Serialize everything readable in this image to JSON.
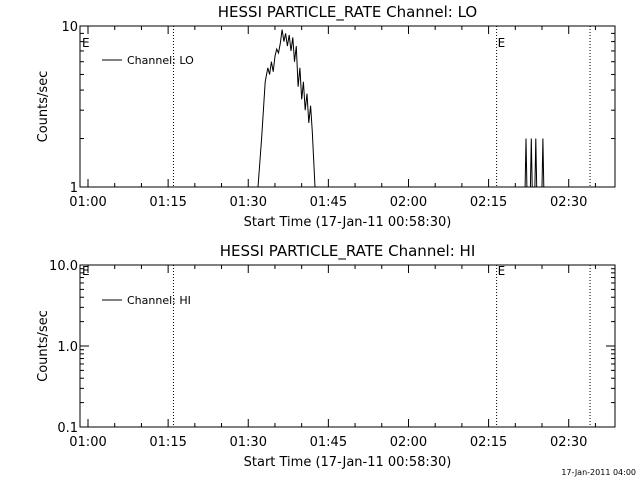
{
  "footer_timestamp": "17-Jan-2011 04:00",
  "chart_data": [
    {
      "type": "line",
      "title": "HESSI PARTICLE_RATE Channel: LO",
      "xlabel": "Start Time (17-Jan-11 00:58:30)",
      "ylabel": "Counts/sec",
      "y_scale": "log",
      "xlim": [
        "00:58:30",
        "02:38:40"
      ],
      "ylim": [
        1,
        10
      ],
      "x_ticks": [
        "01:00",
        "01:15",
        "01:30",
        "01:45",
        "02:00",
        "02:15",
        "02:30"
      ],
      "y_ticks": [
        "1",
        "10"
      ],
      "legend": "top-left",
      "grid": false,
      "event_markers": [
        {
          "time": "00:58:30",
          "label": "E"
        },
        {
          "time": "02:16:30",
          "label": "E"
        }
      ],
      "dotted_lines": [
        "01:16:00",
        "02:16:30",
        "02:34:00"
      ],
      "series": [
        {
          "name": "Channel: LO",
          "points": [
            [
              "01:31:50",
              1.0
            ],
            [
              "01:32:30",
              2.0
            ],
            [
              "01:33:10",
              4.5
            ],
            [
              "01:33:40",
              5.5
            ],
            [
              "01:34:00",
              5.0
            ],
            [
              "01:34:20",
              6.0
            ],
            [
              "01:34:40",
              5.2
            ],
            [
              "01:35:00",
              6.5
            ],
            [
              "01:35:20",
              7.2
            ],
            [
              "01:35:40",
              6.8
            ],
            [
              "01:36:00",
              7.8
            ],
            [
              "01:36:20",
              9.5
            ],
            [
              "01:36:40",
              8.0
            ],
            [
              "01:37:00",
              9.0
            ],
            [
              "01:37:20",
              7.5
            ],
            [
              "01:37:40",
              8.8
            ],
            [
              "01:38:00",
              7.0
            ],
            [
              "01:38:20",
              8.5
            ],
            [
              "01:38:40",
              6.0
            ],
            [
              "01:39:00",
              7.5
            ],
            [
              "01:39:20",
              4.2
            ],
            [
              "01:39:40",
              5.5
            ],
            [
              "01:40:00",
              3.5
            ],
            [
              "01:40:20",
              4.5
            ],
            [
              "01:40:40",
              3.0
            ],
            [
              "01:41:00",
              3.8
            ],
            [
              "01:41:20",
              2.5
            ],
            [
              "01:41:40",
              3.2
            ],
            [
              "01:42:00",
              2.2
            ],
            [
              "01:42:30",
              1.0
            ],
            [
              "02:21:50",
              1.0
            ],
            [
              "02:22:00",
              2.0
            ],
            [
              "02:22:10",
              1.0
            ],
            [
              "02:22:50",
              1.0
            ],
            [
              "02:23:00",
              2.0
            ],
            [
              "02:23:10",
              1.0
            ],
            [
              "02:23:40",
              1.0
            ],
            [
              "02:23:50",
              2.0
            ],
            [
              "02:24:00",
              1.0
            ],
            [
              "02:25:00",
              1.0
            ],
            [
              "02:25:10",
              2.0
            ],
            [
              "02:25:20",
              1.0
            ]
          ]
        }
      ]
    },
    {
      "type": "line",
      "title": "HESSI PARTICLE_RATE Channel: HI",
      "xlabel": "Start Time (17-Jan-11 00:58:30)",
      "ylabel": "Counts/sec",
      "y_scale": "log",
      "xlim": [
        "00:58:30",
        "02:38:40"
      ],
      "ylim": [
        0.1,
        10.0
      ],
      "x_ticks": [
        "01:00",
        "01:15",
        "01:30",
        "01:45",
        "02:00",
        "02:15",
        "02:30"
      ],
      "y_ticks": [
        "0.1",
        "1.0",
        "10.0"
      ],
      "legend": "top-left",
      "grid": false,
      "event_markers": [
        {
          "time": "00:58:30",
          "label": "E"
        },
        {
          "time": "02:16:30",
          "label": "E"
        }
      ],
      "dotted_lines": [
        "01:16:00",
        "02:16:30",
        "02:34:00"
      ],
      "series": [
        {
          "name": "Channel: HI",
          "points": []
        }
      ]
    }
  ]
}
